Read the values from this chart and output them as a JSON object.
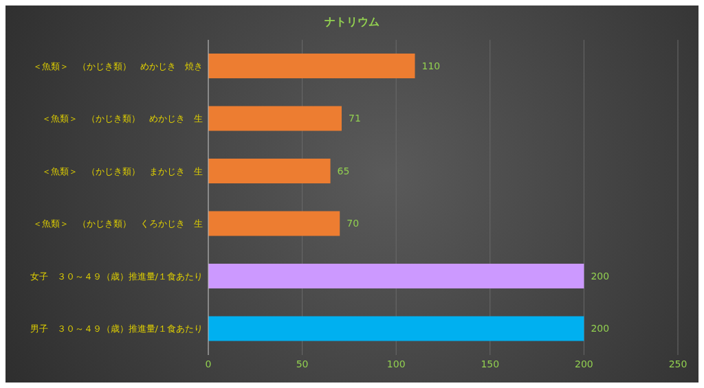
{
  "chart_data": {
    "type": "bar",
    "orientation": "horizontal",
    "title": "ナトリウム",
    "categories": [
      "＜魚類＞　（かじき類）　めかじき　焼き",
      "＜魚類＞　（かじき類）　めかじき　生",
      "＜魚類＞　（かじき類）　まかじき　生",
      "＜魚類＞　（かじき類）　くろかじき　生",
      "女子　３０～４９（歳）推進量/１食あたり",
      "男子　３０～４９（歳）推進量/１食あたり"
    ],
    "values": [
      110,
      71,
      65,
      70,
      200,
      200
    ],
    "colors": [
      "#ed7d31",
      "#ed7d31",
      "#ed7d31",
      "#ed7d31",
      "#cc99ff",
      "#00b0f0"
    ],
    "xlim": [
      0,
      250
    ],
    "xticks": [
      0,
      50,
      100,
      150,
      200,
      250
    ],
    "grid": "x",
    "data_labels": true
  }
}
